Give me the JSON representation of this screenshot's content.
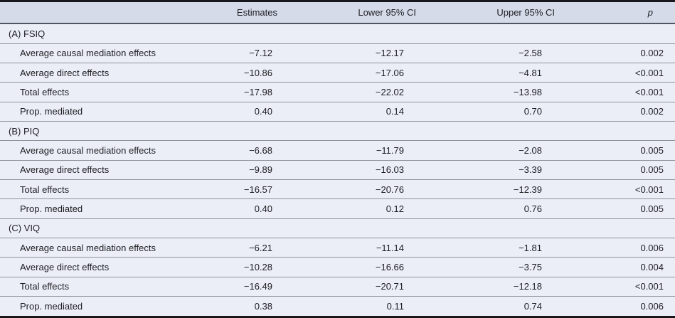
{
  "table": {
    "headers": [
      {
        "label": ""
      },
      {
        "label": "Estimates"
      },
      {
        "label": "Lower 95% CI"
      },
      {
        "label": "Upper 95% CI"
      },
      {
        "label": "p"
      }
    ],
    "sections": [
      {
        "label": "(A) FSIQ",
        "rows": [
          {
            "label": "Average causal mediation effects",
            "estimate": "−7.12",
            "lower_ci": "−12.17",
            "upper_ci": "−2.58",
            "p": "0.002"
          },
          {
            "label": "Average direct effects",
            "estimate": "−10.86",
            "lower_ci": "−17.06",
            "upper_ci": "−4.81",
            "p": "<0.001"
          },
          {
            "label": "Total effects",
            "estimate": "−17.98",
            "lower_ci": "−22.02",
            "upper_ci": "−13.98",
            "p": "<0.001"
          },
          {
            "label": "Prop. mediated",
            "estimate": "0.40",
            "lower_ci": "0.14",
            "upper_ci": "0.70",
            "p": "0.002"
          }
        ]
      },
      {
        "label": "(B) PIQ",
        "rows": [
          {
            "label": "Average causal mediation effects",
            "estimate": "−6.68",
            "lower_ci": "−11.79",
            "upper_ci": "−2.08",
            "p": "0.005"
          },
          {
            "label": "Average direct effects",
            "estimate": "−9.89",
            "lower_ci": "−16.03",
            "upper_ci": "−3.39",
            "p": "0.005"
          },
          {
            "label": "Total effects",
            "estimate": "−16.57",
            "lower_ci": "−20.76",
            "upper_ci": "−12.39",
            "p": "<0.001"
          },
          {
            "label": "Prop. mediated",
            "estimate": "0.40",
            "lower_ci": "0.12",
            "upper_ci": "0.76",
            "p": "0.005"
          }
        ]
      },
      {
        "label": "(C) VIQ",
        "rows": [
          {
            "label": "Average causal mediation effects",
            "estimate": "−6.21",
            "lower_ci": "−11.14",
            "upper_ci": "−1.81",
            "p": "0.006"
          },
          {
            "label": "Average direct effects",
            "estimate": "−10.28",
            "lower_ci": "−16.66",
            "upper_ci": "−3.75",
            "p": "0.004"
          },
          {
            "label": "Total effects",
            "estimate": "−16.49",
            "lower_ci": "−20.71",
            "upper_ci": "−12.18",
            "p": "<0.001"
          },
          {
            "label": "Prop. mediated",
            "estimate": "0.38",
            "lower_ci": "0.11",
            "upper_ci": "0.74",
            "p": "0.006"
          }
        ]
      }
    ]
  },
  "colors": {
    "header_bg": "#d6dbea",
    "row_bg": "#ebeef7",
    "separator": "#8f939c",
    "header_rule": "#515560",
    "outer_border": "#17171b",
    "text": "#1d1e22"
  }
}
